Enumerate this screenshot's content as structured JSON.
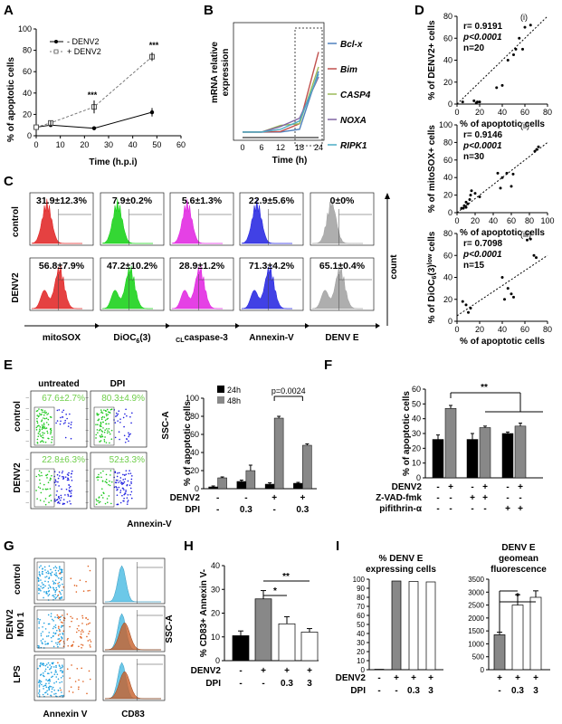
{
  "panels": {
    "A": "A",
    "B": "B",
    "C": "C",
    "D": "D",
    "E": "E",
    "F": "F",
    "G": "G",
    "H": "H",
    "I": "I"
  },
  "A": {
    "ylabel": "% of apoptotic cells",
    "xlabel": "Time (h.p.i)",
    "legend": [
      "- DENV2",
      "+ DENV2"
    ],
    "yticks": [
      "0",
      "20",
      "40",
      "60",
      "80",
      "100"
    ],
    "xticks": [
      "0",
      "10",
      "20",
      "30",
      "40",
      "50",
      "60"
    ],
    "sig": [
      "***",
      "***"
    ]
  },
  "B": {
    "ylabel": "mRNA relative expression",
    "xlabel": "Time (h)",
    "xticks": [
      "0",
      "6",
      "12",
      "18",
      "24"
    ],
    "legend": [
      "Bcl-x",
      "Bim",
      "CASP4",
      "NOXA",
      "RIPK1"
    ],
    "colors": [
      "#4f81bd",
      "#c0504d",
      "#9bbb59",
      "#8064a2",
      "#4bacc6"
    ]
  },
  "C": {
    "rows": [
      "control",
      "DENV2"
    ],
    "values": [
      [
        "31.9±12.3%",
        "7.9±0.2%",
        "5.6±1.3%",
        "22.9±5.6%",
        "0±0%"
      ],
      [
        "56.8±7.9%",
        "47.2±10.2%",
        "28.9±1.2%",
        "71.3±4.2%",
        "65.1±0.4%"
      ]
    ],
    "cols": [
      "mitoSOX",
      "DiOC6(3)",
      "caspase-3",
      "Annexin-V",
      "DENV E"
    ],
    "col_sub": "CL",
    "count": "count",
    "colors": [
      "#e02020",
      "#10d010",
      "#e020e0",
      "#2020e0",
      "#a0a0a0"
    ]
  },
  "D": {
    "xlabel": "% of apoptotic cells",
    "plots": [
      {
        "tag": "(i)",
        "ylabel": "% of DENV2+ cells",
        "r": "r= 0.9191",
        "p": "p<0.0001",
        "n": "n=20",
        "yticks": [
          "0",
          "20",
          "40",
          "60",
          "80"
        ],
        "xticks": [
          "0",
          "20",
          "40",
          "60",
          "80"
        ]
      },
      {
        "tag": "(ii)",
        "ylabel": "% of mitoSOX+ cells",
        "r": "r= 0.9146",
        "p": "p<0.0001",
        "n": "n=30",
        "yticks": [
          "0",
          "20",
          "40",
          "60",
          "80",
          "100"
        ],
        "xticks": [
          "0",
          "20",
          "40",
          "60",
          "80",
          "100"
        ]
      },
      {
        "tag": "(iii)",
        "ylabel": "% of DiOC6(3)low cells",
        "r": "r= 0.7098",
        "p": "p<0.0001",
        "n": "n=15",
        "yticks": [
          "0",
          "20",
          "40",
          "60",
          "80"
        ],
        "xticks": [
          "0",
          "20",
          "40",
          "60",
          "80"
        ]
      }
    ]
  },
  "E": {
    "cols": [
      "untreated",
      "DPI"
    ],
    "rows": [
      "control",
      "DENV2"
    ],
    "values": [
      [
        "67.6±2.7%",
        "80.3±4.9%"
      ],
      [
        "22.8±6.3%",
        "52±3.3%"
      ]
    ],
    "yaxis": "SSC-A",
    "xaxis": "Annexin-V",
    "legend": [
      "24h",
      "48h"
    ],
    "ylabel": "% of apoptotic cells",
    "yticks": [
      "0",
      "20",
      "40",
      "60",
      "80",
      "100"
    ],
    "pval": "p=0.0024",
    "denv2_row": [
      "-",
      "-",
      "+",
      "+"
    ],
    "dpi_row": [
      "-",
      "0.3",
      "-",
      "0.3"
    ],
    "lab_denv2": "DENV2",
    "lab_dpi": "DPI"
  },
  "F": {
    "ylabel": "% of apoptotic cells",
    "yticks": [
      "0",
      "10",
      "20",
      "30",
      "40",
      "50",
      "60"
    ],
    "sig": "**",
    "rows": [
      {
        "label": "DENV2",
        "vals": [
          "-",
          "+",
          "-",
          "+",
          "-",
          "+"
        ]
      },
      {
        "label": "Z-VAD-fmk",
        "vals": [
          "-",
          "-",
          "+",
          "+",
          "-",
          "-"
        ]
      },
      {
        "label": "pifithrin-α",
        "vals": [
          "-",
          "-",
          "-",
          "-",
          "+",
          "+"
        ]
      }
    ]
  },
  "G": {
    "rows": [
      "control",
      "DENV2 MOI 1",
      "LPS"
    ],
    "xlabels": [
      "Annexin V",
      "CD83"
    ],
    "yaxis": "SSC-A"
  },
  "H": {
    "ylabel": "% CD83+ Annexin V-",
    "yticks": [
      "0",
      "10",
      "20",
      "30",
      "40"
    ],
    "sig": [
      "*",
      "**"
    ],
    "denv2_row": [
      "-",
      "+",
      "+",
      "+"
    ],
    "dpi_row": [
      "-",
      "-",
      "0.3",
      "3"
    ],
    "lab_denv2": "DENV2",
    "lab_dpi": "DPI"
  },
  "I": {
    "title1": "% DENV E expressing cells",
    "title2": "DENV E geomean fluorescence",
    "yticks1": [
      "0",
      "10",
      "20",
      "30",
      "40",
      "50",
      "60",
      "70",
      "80",
      "90",
      "100"
    ],
    "yticks2": [
      "0",
      "500",
      "1000",
      "1500",
      "2000",
      "2500",
      "3000",
      "3500"
    ],
    "sig": "*",
    "denv2_row": [
      "-",
      "+",
      "+",
      "+"
    ],
    "dpi_row": [
      "-",
      "-",
      "0.3",
      "3"
    ],
    "denv2_row2": [
      "+",
      "+",
      "+"
    ],
    "dpi_row2": [
      "-",
      "0.3",
      "3"
    ],
    "lab_denv2": "DENV2",
    "lab_dpi": "DPI"
  },
  "chart_data": [
    {
      "panel": "A",
      "type": "line",
      "xlabel": "Time (h.p.i)",
      "ylabel": "% of apoptotic cells",
      "xlim": [
        0,
        60
      ],
      "ylim": [
        0,
        100
      ],
      "series": [
        {
          "name": "- DENV2",
          "x": [
            0,
            6,
            24,
            48
          ],
          "y": [
            8,
            10,
            7,
            22
          ]
        },
        {
          "name": "+ DENV2",
          "x": [
            0,
            6,
            24,
            48
          ],
          "y": [
            8,
            12,
            27,
            74
          ]
        }
      ]
    },
    {
      "panel": "B",
      "type": "line",
      "xlabel": "Time (h)",
      "ylabel": "mRNA relative expression",
      "categories": [
        "0",
        "6",
        "12",
        "18",
        "24"
      ],
      "series": [
        {
          "name": "Bcl-x",
          "values": [
            1,
            1,
            1,
            1.5,
            12
          ]
        },
        {
          "name": "Bim",
          "values": [
            1,
            1,
            1.1,
            2.5,
            15.5
          ]
        },
        {
          "name": "CASP4",
          "values": [
            1,
            1,
            2.2,
            2.5,
            12.8
          ]
        },
        {
          "name": "NOXA",
          "values": [
            1,
            1,
            2,
            3.5,
            11
          ]
        },
        {
          "name": "RIPK1",
          "values": [
            1,
            1,
            1.5,
            3,
            11.5
          ]
        }
      ]
    },
    {
      "panel": "E",
      "type": "bar",
      "ylabel": "% of apoptotic cells",
      "ylim": [
        0,
        100
      ],
      "categories": [
        "DENV2- DPI-",
        "DENV2- DPI0.3",
        "DENV2+ DPI-",
        "DENV2+ DPI0.3"
      ],
      "series": [
        {
          "name": "24h",
          "values": [
            2,
            8,
            5,
            6
          ]
        },
        {
          "name": "48h",
          "values": [
            12,
            20,
            78,
            48
          ]
        }
      ]
    },
    {
      "panel": "F",
      "type": "bar",
      "ylabel": "% of apoptotic cells",
      "ylim": [
        0,
        60
      ],
      "categories": [
        "c1",
        "c2",
        "c3",
        "c4",
        "c5",
        "c6"
      ],
      "series": [
        {
          "values": [
            26,
            47,
            26,
            34,
            30,
            35
          ]
        }
      ]
    },
    {
      "panel": "H",
      "type": "bar",
      "ylabel": "% CD83+ Annexin V-",
      "ylim": [
        0,
        40
      ],
      "categories": [
        "c1",
        "c2",
        "c3",
        "c4"
      ],
      "series": [
        {
          "values": [
            10.5,
            26,
            15.5,
            12
          ]
        }
      ]
    },
    {
      "panel": "I1",
      "type": "bar",
      "title": "% DENV E expressing cells",
      "ylim": [
        0,
        100
      ],
      "categories": [
        "c1",
        "c2",
        "c3",
        "c4"
      ],
      "series": [
        {
          "values": [
            0.5,
            98,
            97.5,
            97
          ]
        }
      ]
    },
    {
      "panel": "I2",
      "type": "bar",
      "title": "DENV E geomean fluorescence",
      "ylim": [
        0,
        3500
      ],
      "categories": [
        "c1",
        "c2",
        "c3"
      ],
      "series": [
        {
          "values": [
            1350,
            2500,
            2800
          ]
        }
      ]
    }
  ]
}
